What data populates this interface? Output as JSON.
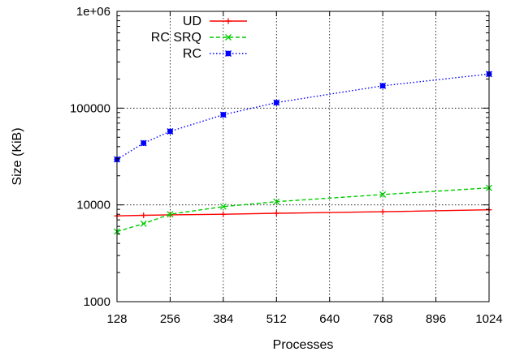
{
  "chart_data": {
    "type": "line",
    "title": "",
    "xlabel": "Processes",
    "ylabel": "Size (KiB)",
    "x_ticks": [
      128,
      256,
      384,
      512,
      640,
      768,
      896,
      1024
    ],
    "xlim": [
      128,
      1024
    ],
    "y_scale": "log",
    "ylim": [
      1000,
      1000000
    ],
    "y_ticks": [
      {
        "value": 1000,
        "label": "1000"
      },
      {
        "value": 10000,
        "label": "10000"
      },
      {
        "value": 100000,
        "label": "100000"
      },
      {
        "value": 1000000,
        "label": "1e+06"
      }
    ],
    "grid": true,
    "legend_position": "top-left",
    "series": [
      {
        "name": "UD",
        "color": "#ff0000",
        "marker": "plus",
        "dash": "solid",
        "points": [
          [
            128,
            7700
          ],
          [
            192,
            7800
          ],
          [
            256,
            7900
          ],
          [
            384,
            8000
          ],
          [
            512,
            8200
          ],
          [
            768,
            8500
          ],
          [
            1024,
            8900
          ]
        ]
      },
      {
        "name": "RC SRQ",
        "color": "#00cc00",
        "marker": "cross",
        "dash": "dashed",
        "points": [
          [
            128,
            5300
          ],
          [
            192,
            6400
          ],
          [
            256,
            8000
          ],
          [
            384,
            9600
          ],
          [
            512,
            10800
          ],
          [
            768,
            12800
          ],
          [
            1024,
            15000
          ]
        ]
      },
      {
        "name": "RC",
        "color": "#0000ff",
        "marker": "star",
        "dash": "dotted",
        "points": [
          [
            128,
            29500
          ],
          [
            192,
            43500
          ],
          [
            256,
            57500
          ],
          [
            384,
            85500
          ],
          [
            512,
            114000
          ],
          [
            768,
            170000
          ],
          [
            1024,
            225000
          ]
        ]
      }
    ]
  }
}
